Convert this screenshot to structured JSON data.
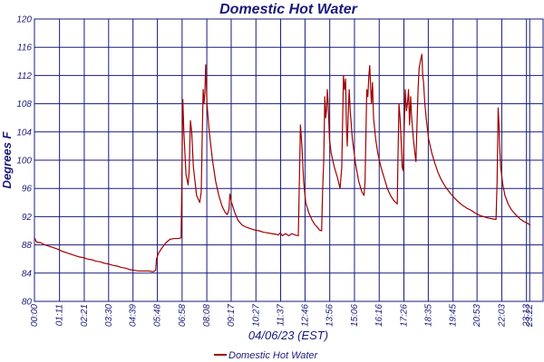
{
  "chart_data": {
    "type": "line",
    "title": "Domestic Hot Water",
    "xlabel": "04/06/23 (EST)",
    "ylabel": "Degrees F",
    "ylim": [
      80,
      120
    ],
    "yticks": [
      80,
      84,
      88,
      92,
      96,
      100,
      104,
      108,
      112,
      116,
      120
    ],
    "xlim": [
      0,
      24
    ],
    "xticks": [
      {
        "x": 0.0,
        "label": "00:00"
      },
      {
        "x": 1.183,
        "label": "01:11"
      },
      {
        "x": 2.35,
        "label": "02:21"
      },
      {
        "x": 3.5,
        "label": "03:30"
      },
      {
        "x": 4.65,
        "label": "04:39"
      },
      {
        "x": 5.8,
        "label": "05:48"
      },
      {
        "x": 6.967,
        "label": "06:58"
      },
      {
        "x": 8.133,
        "label": "08:08"
      },
      {
        "x": 9.283,
        "label": "09:17"
      },
      {
        "x": 10.45,
        "label": "10:27"
      },
      {
        "x": 11.617,
        "label": "11:37"
      },
      {
        "x": 12.767,
        "label": "12:46"
      },
      {
        "x": 13.933,
        "label": "13:56"
      },
      {
        "x": 15.1,
        "label": "15:06"
      },
      {
        "x": 16.267,
        "label": "16:16"
      },
      {
        "x": 17.433,
        "label": "17:26"
      },
      {
        "x": 18.583,
        "label": "18:35"
      },
      {
        "x": 19.75,
        "label": "19:45"
      },
      {
        "x": 20.883,
        "label": "20:53"
      },
      {
        "x": 22.05,
        "label": "22:03"
      },
      {
        "x": 23.217,
        "label": "23:13"
      },
      {
        "x": 23.367,
        "label": "23:22"
      }
    ],
    "grid": true,
    "legend": "bottom",
    "colors": {
      "series": "#a00000",
      "grid": "#1a1a7a",
      "text": "#1a1a7a"
    },
    "series": [
      {
        "name": "Domestic Hot Water",
        "points": [
          [
            0.0,
            89.0
          ],
          [
            0.1,
            88.4
          ],
          [
            0.3,
            88.3
          ],
          [
            0.5,
            88.0
          ],
          [
            0.7,
            87.8
          ],
          [
            0.9,
            87.6
          ],
          [
            1.1,
            87.4
          ],
          [
            1.3,
            87.1
          ],
          [
            1.5,
            86.9
          ],
          [
            1.7,
            86.7
          ],
          [
            1.9,
            86.5
          ],
          [
            2.1,
            86.3
          ],
          [
            2.3,
            86.2
          ],
          [
            2.5,
            86.0
          ],
          [
            2.7,
            85.9
          ],
          [
            2.9,
            85.7
          ],
          [
            3.1,
            85.6
          ],
          [
            3.3,
            85.4
          ],
          [
            3.5,
            85.3
          ],
          [
            3.7,
            85.1
          ],
          [
            3.9,
            85.0
          ],
          [
            4.1,
            84.8
          ],
          [
            4.3,
            84.7
          ],
          [
            4.5,
            84.5
          ],
          [
            4.7,
            84.4
          ],
          [
            4.9,
            84.3
          ],
          [
            5.1,
            84.3
          ],
          [
            5.4,
            84.3
          ],
          [
            5.6,
            84.2
          ],
          [
            5.72,
            84.4
          ],
          [
            5.76,
            86.0
          ],
          [
            5.85,
            86.8
          ],
          [
            6.0,
            87.5
          ],
          [
            6.2,
            88.3
          ],
          [
            6.4,
            88.8
          ],
          [
            6.6,
            88.9
          ],
          [
            6.8,
            88.9
          ],
          [
            6.92,
            89.0
          ],
          [
            6.95,
            96.0
          ],
          [
            7.0,
            108.6
          ],
          [
            7.05,
            104.0
          ],
          [
            7.15,
            98.0
          ],
          [
            7.25,
            96.5
          ],
          [
            7.3,
            98.5
          ],
          [
            7.36,
            105.6
          ],
          [
            7.42,
            104.0
          ],
          [
            7.5,
            99.0
          ],
          [
            7.65,
            95.0
          ],
          [
            7.8,
            94.0
          ],
          [
            7.87,
            95.5
          ],
          [
            7.92,
            104.0
          ],
          [
            7.96,
            110.0
          ],
          [
            8.0,
            108.0
          ],
          [
            8.04,
            109.5
          ],
          [
            8.08,
            113.5
          ],
          [
            8.14,
            108.0
          ],
          [
            8.25,
            104.0
          ],
          [
            8.4,
            100.0
          ],
          [
            8.55,
            97.0
          ],
          [
            8.7,
            95.0
          ],
          [
            8.85,
            93.5
          ],
          [
            9.0,
            92.6
          ],
          [
            9.1,
            92.3
          ],
          [
            9.18,
            93.0
          ],
          [
            9.22,
            95.2
          ],
          [
            9.3,
            94.0
          ],
          [
            9.45,
            92.6
          ],
          [
            9.6,
            91.5
          ],
          [
            9.8,
            90.8
          ],
          [
            10.0,
            90.5
          ],
          [
            10.2,
            90.3
          ],
          [
            10.4,
            90.1
          ],
          [
            10.6,
            90.0
          ],
          [
            10.8,
            89.8
          ],
          [
            11.0,
            89.7
          ],
          [
            11.2,
            89.6
          ],
          [
            11.4,
            89.5
          ],
          [
            11.5,
            89.4
          ],
          [
            11.6,
            89.7
          ],
          [
            11.7,
            89.3
          ],
          [
            11.85,
            89.6
          ],
          [
            12.0,
            89.3
          ],
          [
            12.15,
            89.6
          ],
          [
            12.3,
            89.4
          ],
          [
            12.45,
            89.3
          ],
          [
            12.5,
            97.0
          ],
          [
            12.55,
            105.0
          ],
          [
            12.62,
            102.0
          ],
          [
            12.7,
            97.0
          ],
          [
            12.8,
            94.0
          ],
          [
            12.95,
            92.5
          ],
          [
            13.1,
            91.5
          ],
          [
            13.25,
            90.8
          ],
          [
            13.35,
            90.5
          ],
          [
            13.45,
            90.1
          ],
          [
            13.55,
            90.0
          ],
          [
            13.6,
            96.0
          ],
          [
            13.65,
            100.0
          ],
          [
            13.7,
            109.0
          ],
          [
            13.74,
            106.0
          ],
          [
            13.78,
            107.0
          ],
          [
            13.82,
            110.0
          ],
          [
            13.86,
            108.0
          ],
          [
            13.92,
            103.0
          ],
          [
            14.0,
            101.0
          ],
          [
            14.15,
            99.0
          ],
          [
            14.3,
            97.5
          ],
          [
            14.42,
            96.0
          ],
          [
            14.5,
            99.0
          ],
          [
            14.58,
            112.0
          ],
          [
            14.63,
            110.0
          ],
          [
            14.68,
            111.5
          ],
          [
            14.72,
            105.0
          ],
          [
            14.76,
            102.0
          ],
          [
            14.8,
            106.0
          ],
          [
            14.85,
            110.0
          ],
          [
            14.9,
            107.0
          ],
          [
            15.0,
            103.0
          ],
          [
            15.15,
            99.5
          ],
          [
            15.3,
            97.0
          ],
          [
            15.45,
            95.5
          ],
          [
            15.55,
            95.0
          ],
          [
            15.6,
            97.0
          ],
          [
            15.68,
            110.0
          ],
          [
            15.73,
            109.0
          ],
          [
            15.78,
            112.0
          ],
          [
            15.82,
            113.4
          ],
          [
            15.86,
            110.5
          ],
          [
            15.9,
            108.0
          ],
          [
            15.95,
            111.0
          ],
          [
            16.0,
            106.0
          ],
          [
            16.1,
            103.0
          ],
          [
            16.2,
            101.0
          ],
          [
            16.35,
            99.0
          ],
          [
            16.5,
            97.5
          ],
          [
            16.65,
            96.0
          ],
          [
            16.8,
            95.0
          ],
          [
            16.95,
            94.3
          ],
          [
            17.05,
            94.0
          ],
          [
            17.12,
            93.8
          ],
          [
            17.15,
            100.0
          ],
          [
            17.2,
            108.0
          ],
          [
            17.25,
            106.0
          ],
          [
            17.3,
            103.0
          ],
          [
            17.35,
            99.0
          ],
          [
            17.4,
            98.5
          ],
          [
            17.45,
            105.0
          ],
          [
            17.5,
            110.0
          ],
          [
            17.55,
            107.0
          ],
          [
            17.6,
            108.0
          ],
          [
            17.65,
            110.0
          ],
          [
            17.7,
            105.0
          ],
          [
            17.75,
            109.0
          ],
          [
            17.8,
            106.0
          ],
          [
            17.88,
            103.0
          ],
          [
            17.95,
            101.0
          ],
          [
            18.0,
            99.8
          ],
          [
            18.05,
            105.0
          ],
          [
            18.1,
            110.0
          ],
          [
            18.15,
            113.0
          ],
          [
            18.22,
            114.2
          ],
          [
            18.28,
            115.0
          ],
          [
            18.32,
            112.0
          ],
          [
            18.36,
            111.0
          ],
          [
            18.42,
            108.0
          ],
          [
            18.5,
            105.5
          ],
          [
            18.6,
            103.0
          ],
          [
            18.75,
            101.0
          ],
          [
            18.9,
            99.5
          ],
          [
            19.05,
            98.2
          ],
          [
            19.2,
            97.2
          ],
          [
            19.4,
            96.2
          ],
          [
            19.6,
            95.4
          ],
          [
            19.8,
            94.7
          ],
          [
            20.0,
            94.1
          ],
          [
            20.2,
            93.6
          ],
          [
            20.4,
            93.2
          ],
          [
            20.6,
            92.9
          ],
          [
            20.8,
            92.5
          ],
          [
            21.0,
            92.2
          ],
          [
            21.2,
            92.0
          ],
          [
            21.4,
            91.8
          ],
          [
            21.6,
            91.7
          ],
          [
            21.78,
            91.6
          ],
          [
            21.83,
            97.0
          ],
          [
            21.88,
            107.4
          ],
          [
            21.92,
            105.0
          ],
          [
            21.95,
            102.0
          ],
          [
            22.0,
            99.0
          ],
          [
            22.1,
            96.5
          ],
          [
            22.2,
            95.0
          ],
          [
            22.35,
            93.8
          ],
          [
            22.5,
            93.0
          ],
          [
            22.7,
            92.3
          ],
          [
            22.9,
            91.7
          ],
          [
            23.1,
            91.3
          ],
          [
            23.3,
            91.0
          ],
          [
            23.4,
            90.8
          ]
        ]
      }
    ]
  }
}
